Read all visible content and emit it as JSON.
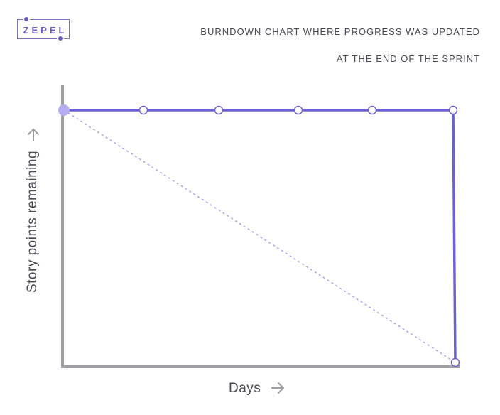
{
  "brand": {
    "logo_text": "ZEPEL",
    "color": "#6b60c0"
  },
  "chart_data": {
    "type": "line",
    "title_line_1": "BURNDOWN CHART WHERE PROGRESS WAS UPDATED",
    "title_line_2": "AT THE END OF THE SPRINT",
    "xlabel": "Days",
    "ylabel": "Story points remaining",
    "x_ticks_shown": false,
    "y_ticks_shown": false,
    "grid": false,
    "series": [
      {
        "role": "actual",
        "style": "solid",
        "color": "#6b62d2",
        "points": [
          {
            "x": 0,
            "y": 1
          },
          {
            "x": 1,
            "y": 1
          },
          {
            "x": 2,
            "y": 1
          },
          {
            "x": 3,
            "y": 1
          },
          {
            "x": 4,
            "y": 1
          },
          {
            "x": 5,
            "y": 1
          },
          {
            "x": 5,
            "y": 0
          }
        ]
      },
      {
        "role": "ideal",
        "style": "dotted",
        "color": "#a9a3e8",
        "points": [
          {
            "x": 0,
            "y": 1
          },
          {
            "x": 5,
            "y": 0
          }
        ]
      }
    ],
    "axis_color": "#9e9ea3",
    "arrow_glyph": "arrow-icon"
  }
}
